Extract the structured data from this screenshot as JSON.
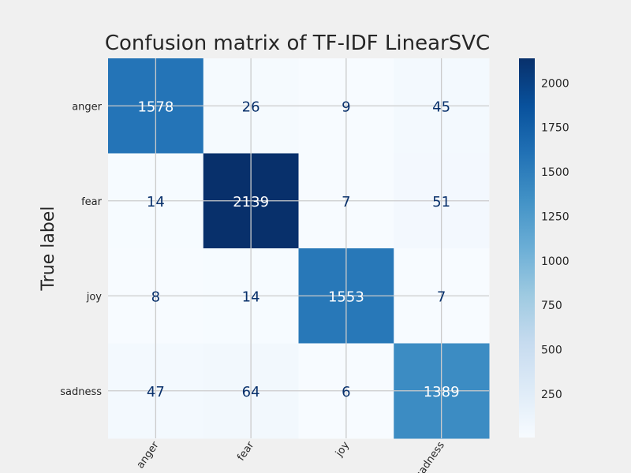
{
  "chart_data": {
    "type": "heatmap",
    "title": "Confusion matrix of TF-IDF LinearSVC",
    "ylabel": "True label",
    "xlabel": "",
    "rows": [
      "anger",
      "fear",
      "joy",
      "sadness"
    ],
    "columns": [
      "anger",
      "fear",
      "joy",
      "sadness"
    ],
    "values": [
      [
        1578,
        26,
        9,
        45
      ],
      [
        14,
        2139,
        7,
        51
      ],
      [
        8,
        14,
        1553,
        7
      ],
      [
        47,
        64,
        6,
        1389
      ]
    ],
    "colorscale": "Blues",
    "colorbar": {
      "range": [
        6,
        2139
      ],
      "ticks": [
        250,
        500,
        750,
        1000,
        1250,
        1500,
        1750,
        2000
      ]
    },
    "grid": true
  }
}
